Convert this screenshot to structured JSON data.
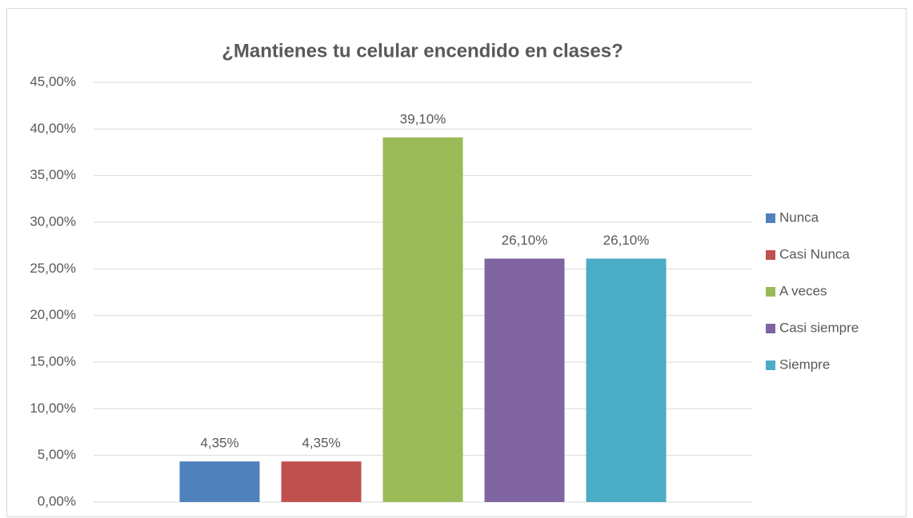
{
  "chart_data": {
    "type": "bar",
    "title": "¿Mantienes tu celular encendido en clases?",
    "categories": [
      null
    ],
    "series": [
      {
        "name": "Nunca",
        "color": "#4f81bd",
        "values": [
          4.35
        ],
        "value_labels": [
          "4,35%"
        ]
      },
      {
        "name": "Casi Nunca",
        "color": "#c0504d",
        "values": [
          4.35
        ],
        "value_labels": [
          "4,35%"
        ]
      },
      {
        "name": "A veces",
        "color": "#9bbb59",
        "values": [
          39.1
        ],
        "value_labels": [
          "39,10%"
        ]
      },
      {
        "name": "Casi siempre",
        "color": "#8064a2",
        "values": [
          26.1
        ],
        "value_labels": [
          "26,10%"
        ]
      },
      {
        "name": "Siempre",
        "color": "#4bacc6",
        "values": [
          26.1
        ],
        "value_labels": [
          "26,10%"
        ]
      }
    ],
    "ylim": [
      0,
      45
    ],
    "yticks": [
      {
        "value": 0,
        "label": "0,00%"
      },
      {
        "value": 5,
        "label": "5,00%"
      },
      {
        "value": 10,
        "label": "10,00%"
      },
      {
        "value": 15,
        "label": "15,00%"
      },
      {
        "value": 20,
        "label": "20,00%"
      },
      {
        "value": 25,
        "label": "25,00%"
      },
      {
        "value": 30,
        "label": "30,00%"
      },
      {
        "value": 35,
        "label": "35,00%"
      },
      {
        "value": 40,
        "label": "40,00%"
      },
      {
        "value": 45,
        "label": "45,00%"
      }
    ],
    "grid": true,
    "legend": "right"
  }
}
